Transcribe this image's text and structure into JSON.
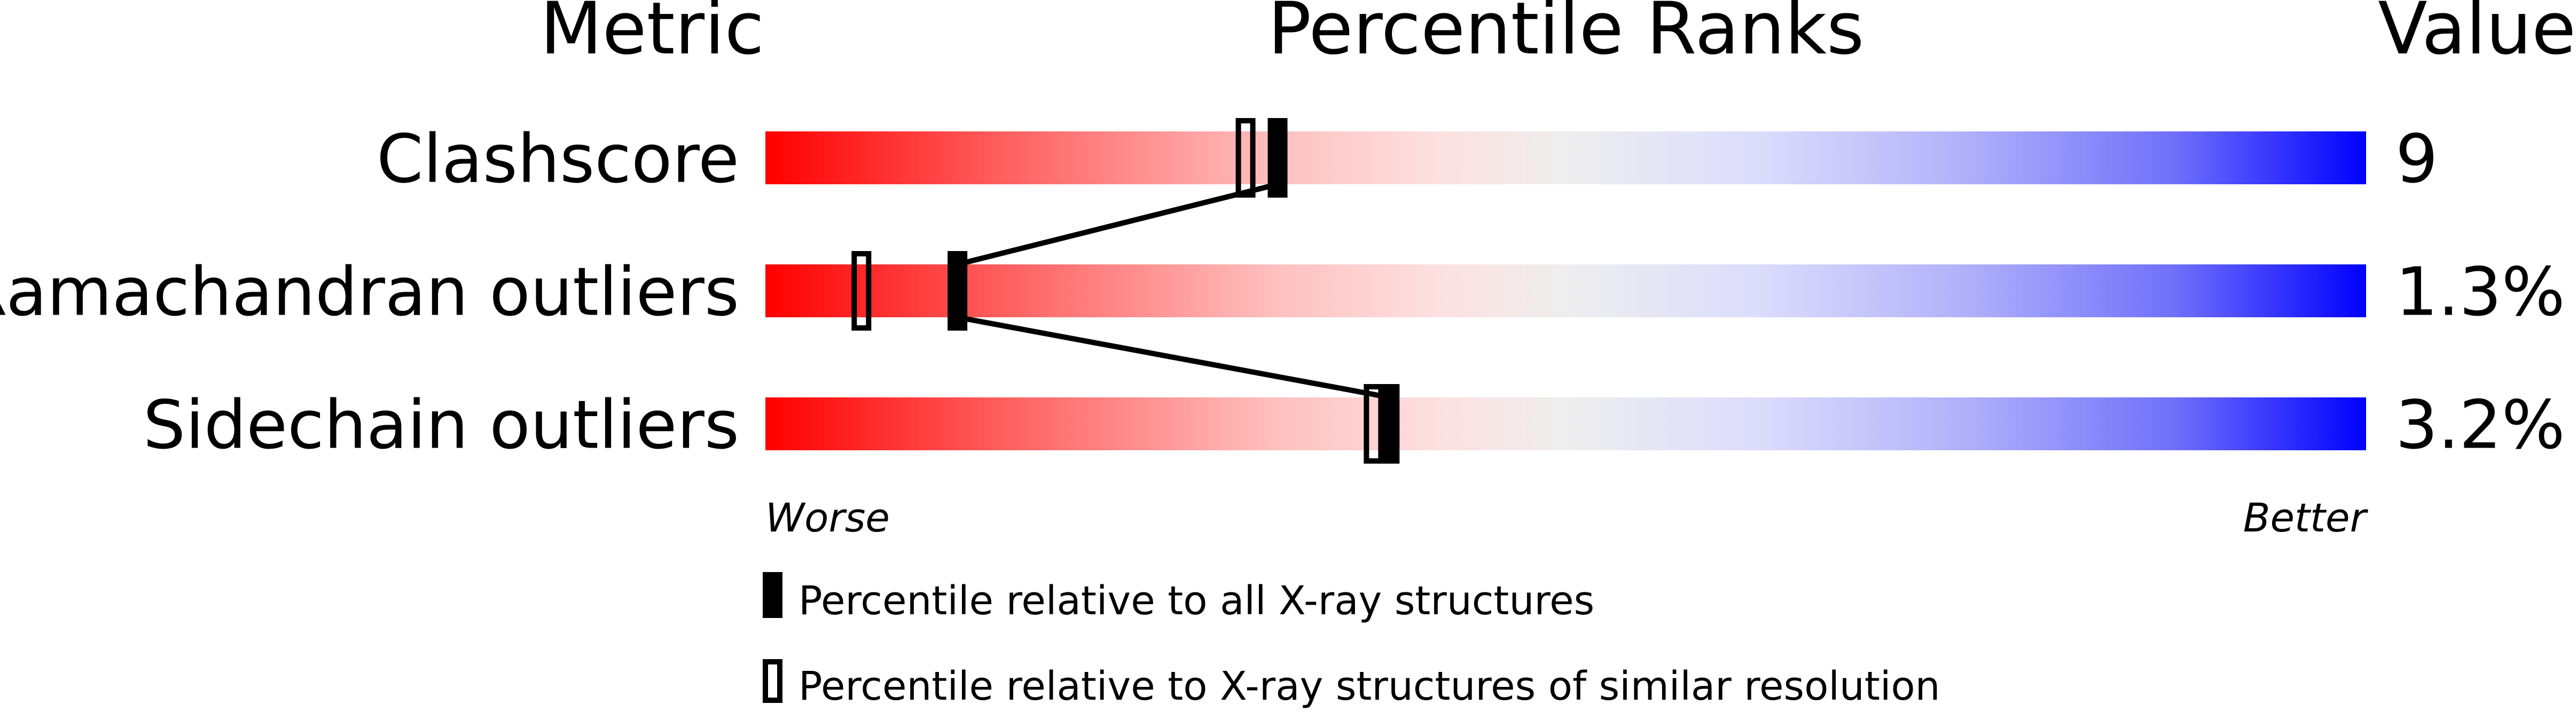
{
  "chart_data": {
    "type": "percentile-bar",
    "headers": {
      "metric": "Metric",
      "ranks": "Percentile Ranks",
      "value": "Value"
    },
    "xlim": [
      0,
      100
    ],
    "rows": [
      {
        "metric": "Clashscore",
        "value": "9",
        "percentile_all": 32,
        "percentile_similar": 30
      },
      {
        "metric": "Ramachandran outliers",
        "value": "1.3%",
        "percentile_all": 12,
        "percentile_similar": 6
      },
      {
        "metric": "Sidechain outliers",
        "value": "3.2%",
        "percentile_all": 39,
        "percentile_similar": 38
      }
    ],
    "scale_labels": {
      "left": "Worse",
      "right": "Better"
    },
    "legend": {
      "all": "Percentile relative to all X-ray structures",
      "similar": "Percentile relative to X-ray structures of similar resolution"
    },
    "colors": {
      "worse": "#ff0000",
      "mid": "#eeeeee",
      "better": "#0000ff",
      "marker": "#000000"
    }
  }
}
